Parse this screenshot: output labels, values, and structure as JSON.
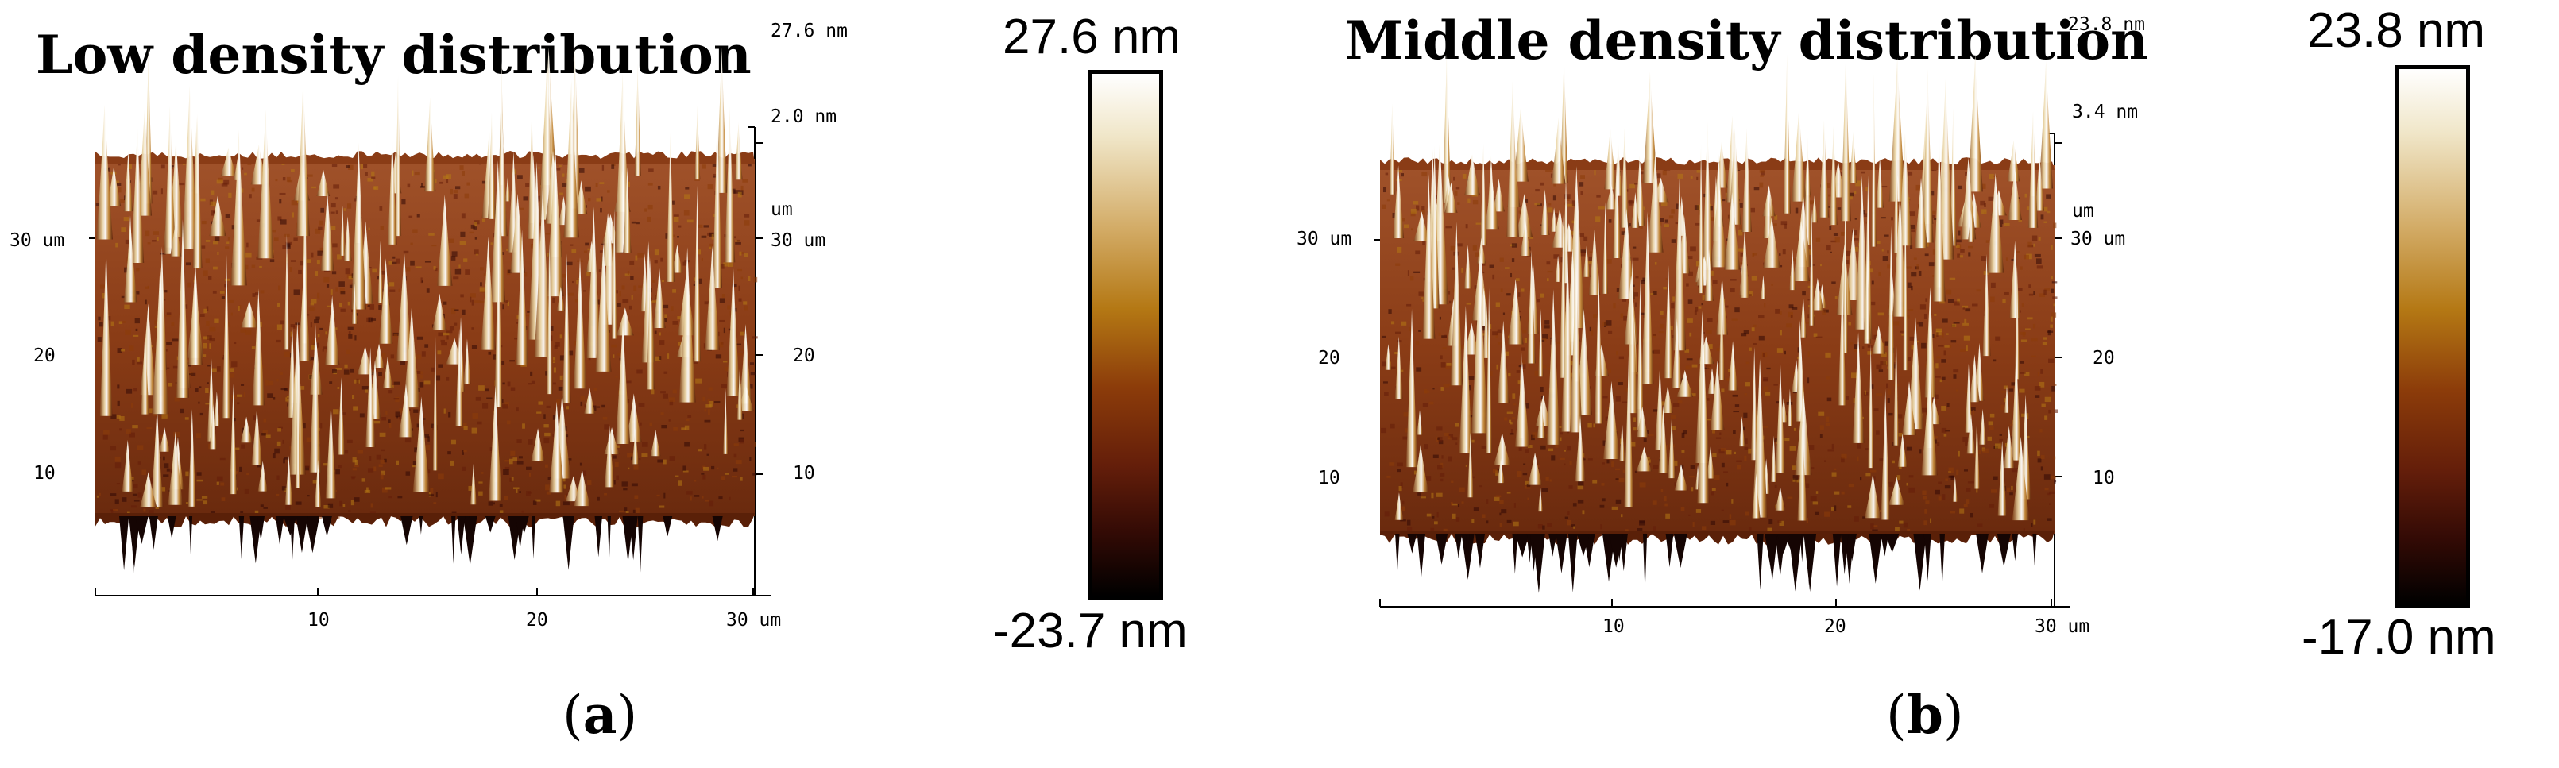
{
  "panels": [
    {
      "title": "Low density distribution",
      "caption_letter": "a",
      "z_top": "27.6 nm",
      "z_mid": "2.0 nm",
      "y_unit": "um",
      "x_ticks": [
        "10",
        "20",
        "30 um"
      ],
      "left_ticks": [
        "30 um",
        "20",
        "10"
      ],
      "right_ticks": [
        "30 um",
        "20",
        "10"
      ],
      "colorbar_max": "27.6 nm",
      "colorbar_min": "-23.7 nm"
    },
    {
      "title": "Middle density distribution",
      "caption_letter": "b",
      "z_top": "23.8 nm",
      "z_mid": "3.4 nm",
      "y_unit": "um",
      "x_ticks": [
        "10",
        "20",
        "30 um"
      ],
      "left_ticks": [
        "30 um",
        "20",
        "10"
      ],
      "right_ticks": [
        "30 um",
        "20",
        "10"
      ],
      "colorbar_max": "23.8 nm",
      "colorbar_min": "-17.0 nm"
    }
  ],
  "colorscale": [
    "#ffffff",
    "#f0e6c8",
    "#d2aa64",
    "#b47814",
    "#8c3c0a",
    "#641e0a",
    "#320a05",
    "#000000"
  ]
}
